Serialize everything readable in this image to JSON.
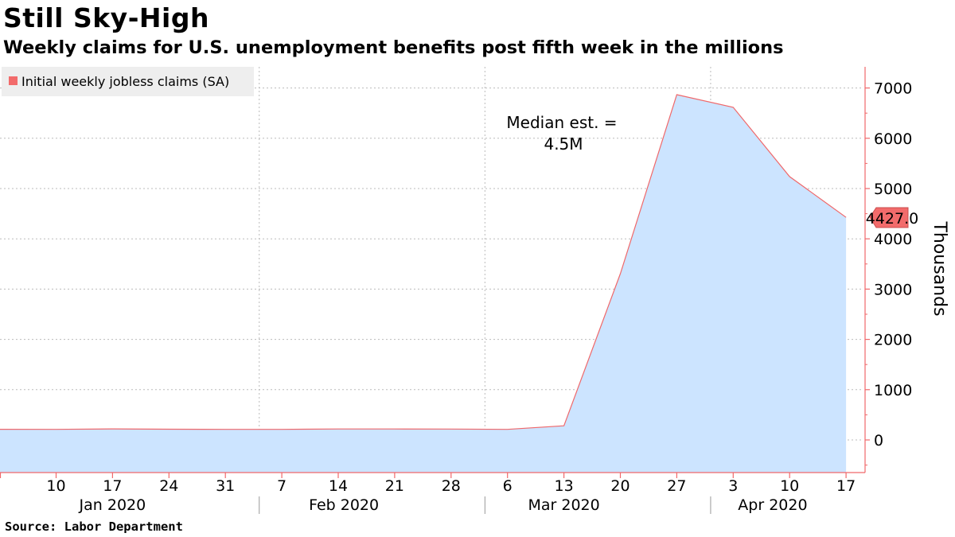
{
  "header": {
    "title": "Still Sky-High",
    "subtitle": "Weekly claims for U.S. unemployment benefits post fifth week in the millions"
  },
  "footer": {
    "source": "Source: Labor Department"
  },
  "colors": {
    "line": "#f0686a",
    "area": "#cce4ff",
    "grid": "#bbbbbb",
    "axis": "#f0686a",
    "badge": "#f26b6b",
    "legend_bg": "#eeeeee"
  },
  "chart_data": {
    "type": "area",
    "title": "Still Sky-High",
    "subtitle": "Weekly claims for U.S. unemployment benefits post fifth week in the millions",
    "ylabel": "Thousands",
    "xlabel": "",
    "ylim": [
      -650,
      7500
    ],
    "yticks": [
      0,
      1000,
      2000,
      3000,
      4000,
      5000,
      6000,
      7000
    ],
    "y_axis_side": "right",
    "grid": true,
    "legend": {
      "position": "top-left",
      "entries": [
        "Initial weekly jobless claims (SA)"
      ]
    },
    "x_tick_labels": [
      "10",
      "17",
      "24",
      "31",
      "7",
      "14",
      "21",
      "28",
      "6",
      "13",
      "20",
      "27",
      "3",
      "10",
      "17"
    ],
    "month_labels": [
      "Jan 2020",
      "Feb 2020",
      "Mar 2020",
      "Apr 2020"
    ],
    "series": [
      {
        "name": "Initial weekly jobless claims (SA)",
        "x": [
          "2020-01-03",
          "2020-01-10",
          "2020-01-17",
          "2020-01-24",
          "2020-01-31",
          "2020-02-07",
          "2020-02-14",
          "2020-02-21",
          "2020-02-28",
          "2020-03-06",
          "2020-03-13",
          "2020-03-20",
          "2020-03-27",
          "2020-04-03",
          "2020-04-10",
          "2020-04-17"
        ],
        "x_week_index": [
          -1,
          0,
          1,
          2,
          3,
          4,
          5,
          6,
          7,
          8,
          9,
          10,
          11,
          12,
          13,
          14
        ],
        "values": [
          212,
          210,
          220,
          213,
          211,
          210,
          218,
          219,
          217,
          211,
          282,
          3307,
          6867,
          6615,
          5237,
          4427
        ]
      }
    ],
    "last_value_label": "4427.0",
    "annotations": [
      {
        "text_lines": [
          "Median est. =",
          "4.5M"
        ],
        "week_index": 14
      }
    ]
  }
}
